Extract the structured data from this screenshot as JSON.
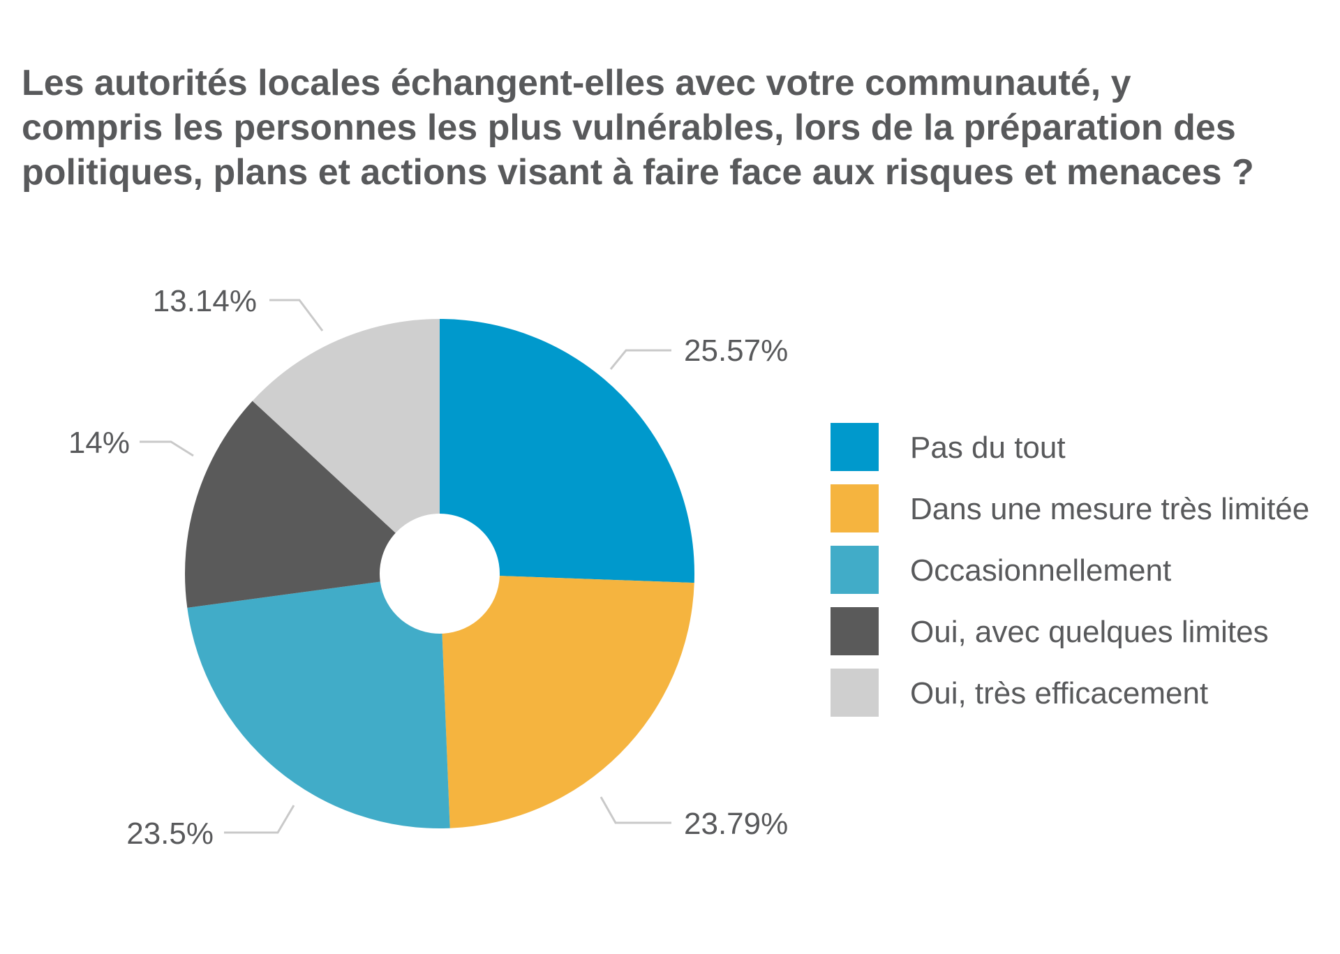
{
  "chart_data": {
    "type": "pie",
    "title": "Les autorités locales échangent-elles avec votre communauté, y\ncompris les personnes les plus vulnérables, lors de la préparation des\npolitiques, plans et actions visant à faire face aux risques et menaces ?",
    "categories": [
      "Pas du tout",
      "Dans une mesure très limitée",
      "Occasionnellement",
      "Oui, avec quelques limites",
      "Oui, très efficacement"
    ],
    "values": [
      25.57,
      23.79,
      23.5,
      14,
      13.14
    ],
    "value_labels": [
      "25.57%",
      "23.79%",
      "23.5%",
      "14%",
      "13.14%"
    ],
    "colors": [
      "#0099CC",
      "#F5B43F",
      "#41ACC8",
      "#5A5A5A",
      "#CFCFCF"
    ],
    "donut_hole": true,
    "start_angle": "top, clockwise",
    "legend_position": "right"
  }
}
